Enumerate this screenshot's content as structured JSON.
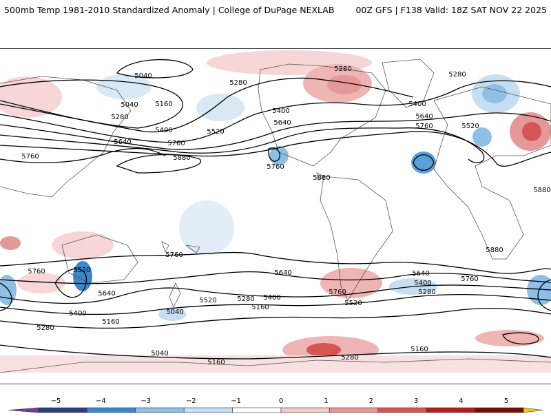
{
  "header": {
    "title": "500mb Temp 1981-2010 Standardized Anomaly | College of DuPage NEXLAB",
    "run_info": "00Z GFS | F138 Valid: 18Z SAT NOV 22 2025"
  },
  "colorbar": {
    "ticks": [
      "−5",
      "−4",
      "−3",
      "−2",
      "−1",
      "0",
      "1",
      "2",
      "3",
      "4",
      "5"
    ],
    "colors": [
      "#6a3fa0",
      "#2a3f7a",
      "#3d86cc",
      "#8fbfe4",
      "#c6def1",
      "#ffffff",
      "#f3caca",
      "#e59898",
      "#d55454",
      "#b31f1f",
      "#7a0a0a",
      "#f1c40f"
    ]
  },
  "map": {
    "contour_labels": [
      "5040",
      "5280",
      "5280",
      "5280",
      "5040",
      "5160",
      "5280",
      "5400",
      "5400",
      "5640",
      "5760",
      "5760",
      "5520",
      "5640",
      "5760",
      "5880",
      "5400",
      "5640",
      "5760",
      "5880",
      "5520",
      "5880",
      "5880",
      "5760",
      "5520",
      "5760",
      "5640",
      "5280",
      "5520",
      "5400",
      "5160",
      "5040",
      "5040",
      "5160",
      "5280",
      "5400",
      "5640",
      "5760",
      "5520",
      "5160",
      "5280",
      "5400",
      "5640",
      "5760",
      "5280",
      "5160"
    ]
  },
  "colors": {
    "warm_anomaly": "#f3caca",
    "cold_anomaly": "#c6def1",
    "contour": "#000000",
    "coastline": "#555555"
  }
}
